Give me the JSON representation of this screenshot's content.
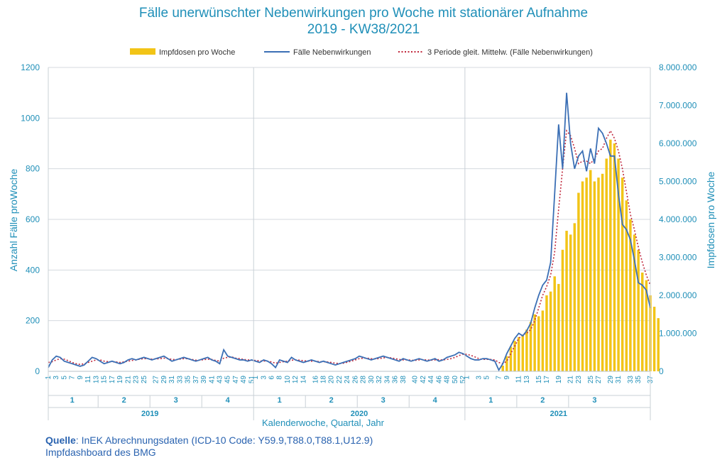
{
  "chart_data": {
    "type": "bar+line",
    "title_line1": "Fälle unerwünschter Nebenwirkungen pro Woche mit stationärer Aufnahme",
    "title_line2": "2019 - KW38/2021",
    "xlabel": "Kalenderwoche, Quartal, Jahr",
    "ylabel_left": "Anzahl Fälle proWoche",
    "ylabel_right": "Impfdosen pro Woche",
    "ylim_left": [
      0,
      1200
    ],
    "ylim_right": [
      0,
      8000000
    ],
    "yticks_left": [
      "0",
      "200",
      "400",
      "600",
      "800",
      "1000",
      "1200"
    ],
    "yticks_right": [
      "0",
      "1.000.000",
      "2.000.000",
      "3.000.000",
      "4.000.000",
      "5.000.000",
      "6.000.000",
      "7.000.000",
      "8.000.000"
    ],
    "legend": {
      "placement": "top",
      "bars": "Impfdosen pro Woche",
      "line": "Fälle Nebenwirkungen",
      "dotted": "3 Periode gleit. Mittelw. (Fälle Nebenwirkungen)"
    },
    "colors": {
      "bars": "#f2c417",
      "line": "#3b6fb5",
      "dotted": "#c0283c",
      "axis_text": "#1f8fb8",
      "source": "#2a63b0"
    },
    "years": [
      {
        "label": "2019",
        "quarters": [
          "1",
          "2",
          "3",
          "4"
        ],
        "weeks": [
          "1",
          "3",
          "5",
          "7",
          "9",
          "11",
          "13",
          "15",
          "17",
          "19",
          "21",
          "23",
          "25",
          "27",
          "29",
          "31",
          "33",
          "35",
          "37",
          "39",
          "41",
          "43",
          "45",
          "47",
          "49",
          "51"
        ]
      },
      {
        "label": "2020",
        "quarters": [
          "1",
          "2",
          "3",
          "4"
        ],
        "weeks": [
          "1",
          "3",
          "6",
          "8",
          "10",
          "12",
          "14",
          "16",
          "18",
          "20",
          "22",
          "24",
          "26",
          "28",
          "30",
          "32",
          "34",
          "36",
          "38",
          "40",
          "42",
          "44",
          "46",
          "48",
          "50",
          "52"
        ]
      },
      {
        "label": "2021",
        "quarters": [
          "1",
          "2",
          "3"
        ],
        "weeks": [
          "1",
          "3",
          "5",
          "7",
          "9",
          "11",
          "13",
          "15",
          "17",
          "19",
          "21",
          "23",
          "25",
          "27",
          "29",
          "31",
          "33",
          "35",
          "37"
        ]
      }
    ],
    "series": [
      {
        "name": "Fälle Nebenwirkungen",
        "type": "line",
        "values": [
          15,
          45,
          60,
          55,
          40,
          35,
          30,
          25,
          20,
          25,
          40,
          55,
          50,
          40,
          30,
          35,
          40,
          35,
          30,
          35,
          45,
          50,
          45,
          50,
          55,
          50,
          45,
          50,
          55,
          60,
          50,
          40,
          45,
          50,
          55,
          50,
          45,
          40,
          45,
          50,
          55,
          45,
          40,
          30,
          85,
          60,
          55,
          50,
          45,
          45,
          40,
          45,
          40,
          35,
          45,
          40,
          30,
          15,
          45,
          40,
          35,
          55,
          45,
          40,
          35,
          40,
          45,
          40,
          35,
          40,
          35,
          30,
          25,
          30,
          35,
          40,
          45,
          50,
          60,
          55,
          50,
          45,
          50,
          55,
          60,
          55,
          50,
          45,
          40,
          50,
          45,
          40,
          45,
          50,
          45,
          40,
          45,
          50,
          40,
          45,
          55,
          60,
          65,
          75,
          70,
          60,
          50,
          45,
          45,
          50,
          50,
          45,
          40,
          5,
          30,
          70,
          100,
          130,
          150,
          140,
          160,
          190,
          250,
          300,
          340,
          360,
          430,
          700,
          975,
          800,
          1100,
          900,
          800,
          850,
          870,
          790,
          880,
          820,
          960,
          940,
          900,
          850,
          850,
          700,
          580,
          560,
          520,
          440,
          350,
          340,
          320,
          250
        ]
      },
      {
        "name": "3 Periode gleit. Mittelw. (Fälle Nebenwirkungen)",
        "type": "dotted",
        "values": [
          35,
          38,
          45,
          50,
          48,
          42,
          35,
          30,
          27,
          30,
          35,
          40,
          45,
          45,
          40,
          38,
          38,
          37,
          35,
          37,
          40,
          43,
          45,
          48,
          50,
          50,
          48,
          49,
          50,
          52,
          50,
          47,
          46,
          48,
          50,
          50,
          47,
          44,
          44,
          46,
          48,
          47,
          43,
          40,
          52,
          55,
          57,
          52,
          50,
          47,
          45,
          44,
          43,
          41,
          41,
          40,
          37,
          32,
          35,
          38,
          40,
          44,
          45,
          44,
          42,
          40,
          40,
          40,
          38,
          38,
          37,
          35,
          32,
          31,
          32,
          36,
          40,
          45,
          50,
          52,
          52,
          50,
          49,
          50,
          53,
          55,
          53,
          50,
          47,
          45,
          45,
          44,
          43,
          45,
          46,
          45,
          44,
          45,
          46,
          45,
          47,
          50,
          55,
          62,
          68,
          67,
          63,
          57,
          50,
          47,
          47,
          47,
          45,
          35,
          30,
          40,
          70,
          100,
          130,
          145,
          150,
          165,
          200,
          250,
          300,
          335,
          380,
          470,
          640,
          800,
          950,
          930,
          880,
          820,
          830,
          830,
          820,
          840,
          870,
          880,
          920,
          950,
          920,
          870,
          800,
          710,
          620,
          560,
          490,
          430,
          380,
          340
        ]
      },
      {
        "name": "Impfdosen pro Woche",
        "type": "bar",
        "values": [
          0,
          0,
          0,
          0,
          0,
          0,
          0,
          0,
          0,
          0,
          0,
          0,
          0,
          0,
          0,
          0,
          0,
          0,
          0,
          0,
          0,
          0,
          0,
          0,
          0,
          0,
          0,
          0,
          0,
          0,
          0,
          0,
          0,
          0,
          0,
          0,
          0,
          0,
          0,
          0,
          0,
          0,
          0,
          0,
          0,
          0,
          0,
          0,
          0,
          0,
          0,
          0,
          0,
          0,
          0,
          0,
          0,
          0,
          0,
          0,
          0,
          0,
          0,
          0,
          0,
          0,
          0,
          0,
          0,
          0,
          0,
          0,
          0,
          0,
          0,
          0,
          0,
          0,
          0,
          0,
          0,
          0,
          0,
          0,
          0,
          0,
          0,
          0,
          0,
          0,
          0,
          0,
          0,
          0,
          0,
          0,
          0,
          0,
          0,
          0,
          0,
          0,
          0,
          0,
          0,
          0,
          0,
          0,
          0,
          0,
          0,
          0,
          0,
          0,
          150000,
          400000,
          650000,
          800000,
          900000,
          950000,
          1100000,
          1300000,
          1500000,
          1450000,
          1600000,
          2000000,
          2100000,
          2500000,
          2300000,
          3200000,
          3700000,
          3600000,
          3900000,
          4700000,
          5000000,
          5100000,
          5300000,
          5000000,
          5100000,
          5200000,
          5600000,
          6100000,
          6000000,
          5600000,
          5100000,
          4500000,
          4000000,
          3600000,
          3200000,
          2600000,
          2400000,
          2000000,
          1700000,
          1400000
        ]
      }
    ]
  },
  "source": {
    "label": "Quelle",
    "line1": ": InEK Abrechnungsdaten (ICD-10 Code: Y59.9,T88.0,T88.1,U12.9)",
    "line2": "Impfdashboard des BMG"
  }
}
